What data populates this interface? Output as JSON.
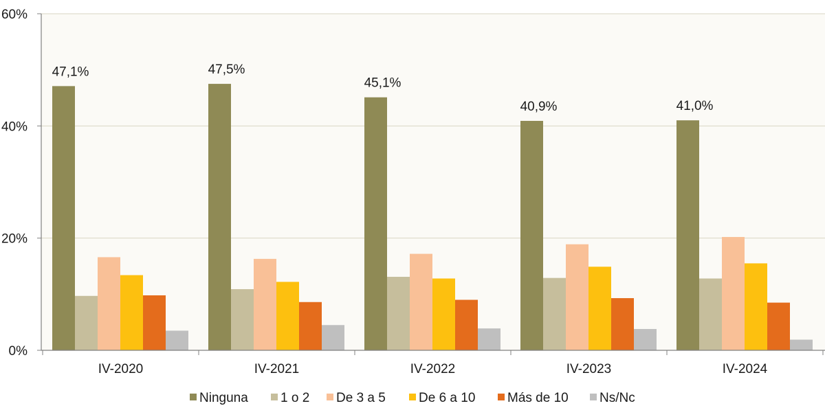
{
  "chart_data": {
    "type": "bar",
    "title": "",
    "xlabel": "",
    "ylabel": "",
    "ylim": [
      0,
      60
    ],
    "yticks": [
      0,
      20,
      40,
      60
    ],
    "ytick_labels": [
      "0%",
      "20%",
      "40%",
      "60%"
    ],
    "grid": true,
    "legend_position": "bottom",
    "categories": [
      "IV-2020",
      "IV-2021",
      "IV-2022",
      "IV-2023",
      "IV-2024"
    ],
    "series": [
      {
        "name": "Ninguna",
        "color": "#8f8a55",
        "values": [
          47.1,
          47.5,
          45.1,
          40.9,
          41.0
        ],
        "labels": [
          "47,1%",
          "47,5%",
          "45,1%",
          "40,9%",
          "41,0%"
        ]
      },
      {
        "name": "1 o 2",
        "color": "#c6be9c",
        "values": [
          9.7,
          10.9,
          13.1,
          12.9,
          12.8
        ]
      },
      {
        "name": "De 3 a 5",
        "color": "#f9c097",
        "values": [
          16.6,
          16.3,
          17.2,
          18.9,
          20.2
        ]
      },
      {
        "name": "De 6 a 10",
        "color": "#fdc00f",
        "values": [
          13.4,
          12.2,
          12.8,
          14.9,
          15.5
        ]
      },
      {
        "name": "Más de 10",
        "color": "#e46c1c",
        "values": [
          9.8,
          8.6,
          9.0,
          9.3,
          8.5
        ]
      },
      {
        "name": "Ns/Nc",
        "color": "#bfbfbf",
        "values": [
          3.5,
          4.5,
          3.9,
          3.8,
          1.9
        ]
      }
    ]
  }
}
